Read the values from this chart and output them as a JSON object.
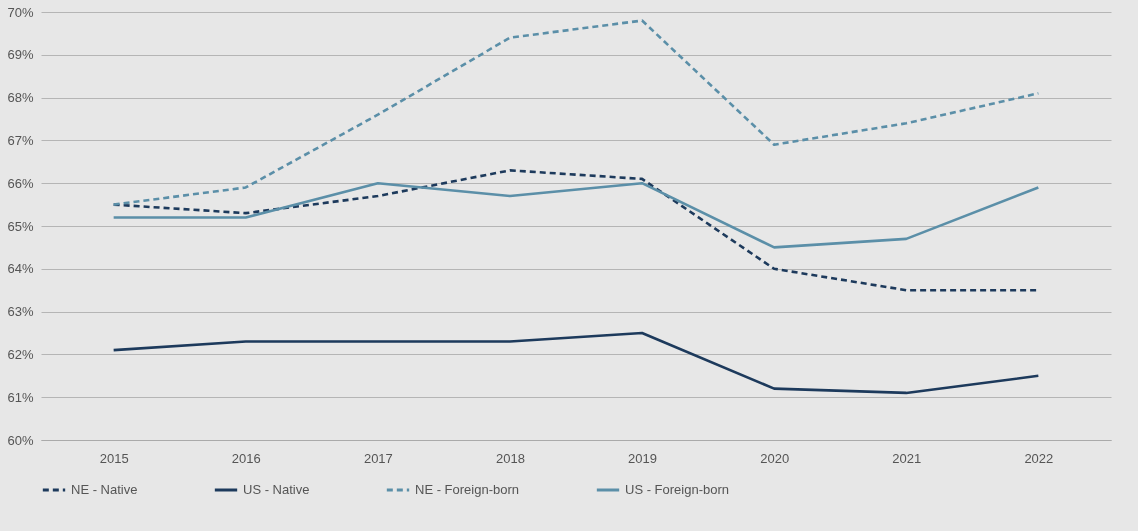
{
  "chart_data": {
    "type": "line",
    "categories": [
      "2015",
      "2016",
      "2017",
      "2018",
      "2019",
      "2020",
      "2021",
      "2022"
    ],
    "series": [
      {
        "name": "NE - Native",
        "color": "#1d3a5c",
        "line_style": "dashed",
        "values": [
          65.5,
          65.3,
          65.7,
          66.3,
          66.1,
          64.0,
          63.5,
          63.5
        ]
      },
      {
        "name": "US - Native",
        "color": "#1d3a5c",
        "line_style": "solid",
        "values": [
          62.1,
          62.3,
          62.3,
          62.3,
          62.5,
          61.2,
          61.1,
          61.5
        ]
      },
      {
        "name": "NE - Foreign-born",
        "color": "#5b8fa8",
        "line_style": "dashed",
        "values": [
          65.5,
          65.9,
          67.6,
          69.4,
          69.8,
          66.9,
          67.4,
          68.1
        ]
      },
      {
        "name": "US - Foreign-born",
        "color": "#5b8fa8",
        "line_style": "solid",
        "values": [
          65.2,
          65.2,
          66.0,
          65.7,
          66.0,
          64.5,
          64.7,
          65.9
        ]
      }
    ],
    "ylim": [
      60,
      70
    ],
    "yticks": [
      {
        "value": 60,
        "label": "60%"
      },
      {
        "value": 61,
        "label": "61%"
      },
      {
        "value": 62,
        "label": "62%"
      },
      {
        "value": 63,
        "label": "63%"
      },
      {
        "value": 64,
        "label": "64%"
      },
      {
        "value": 65,
        "label": "65%"
      },
      {
        "value": 66,
        "label": "66%"
      },
      {
        "value": 67,
        "label": "67%"
      },
      {
        "value": 68,
        "label": "68%"
      },
      {
        "value": 69,
        "label": "69%"
      },
      {
        "value": 70,
        "label": "70%"
      }
    ],
    "grid": "y",
    "legend": "bottom left"
  }
}
